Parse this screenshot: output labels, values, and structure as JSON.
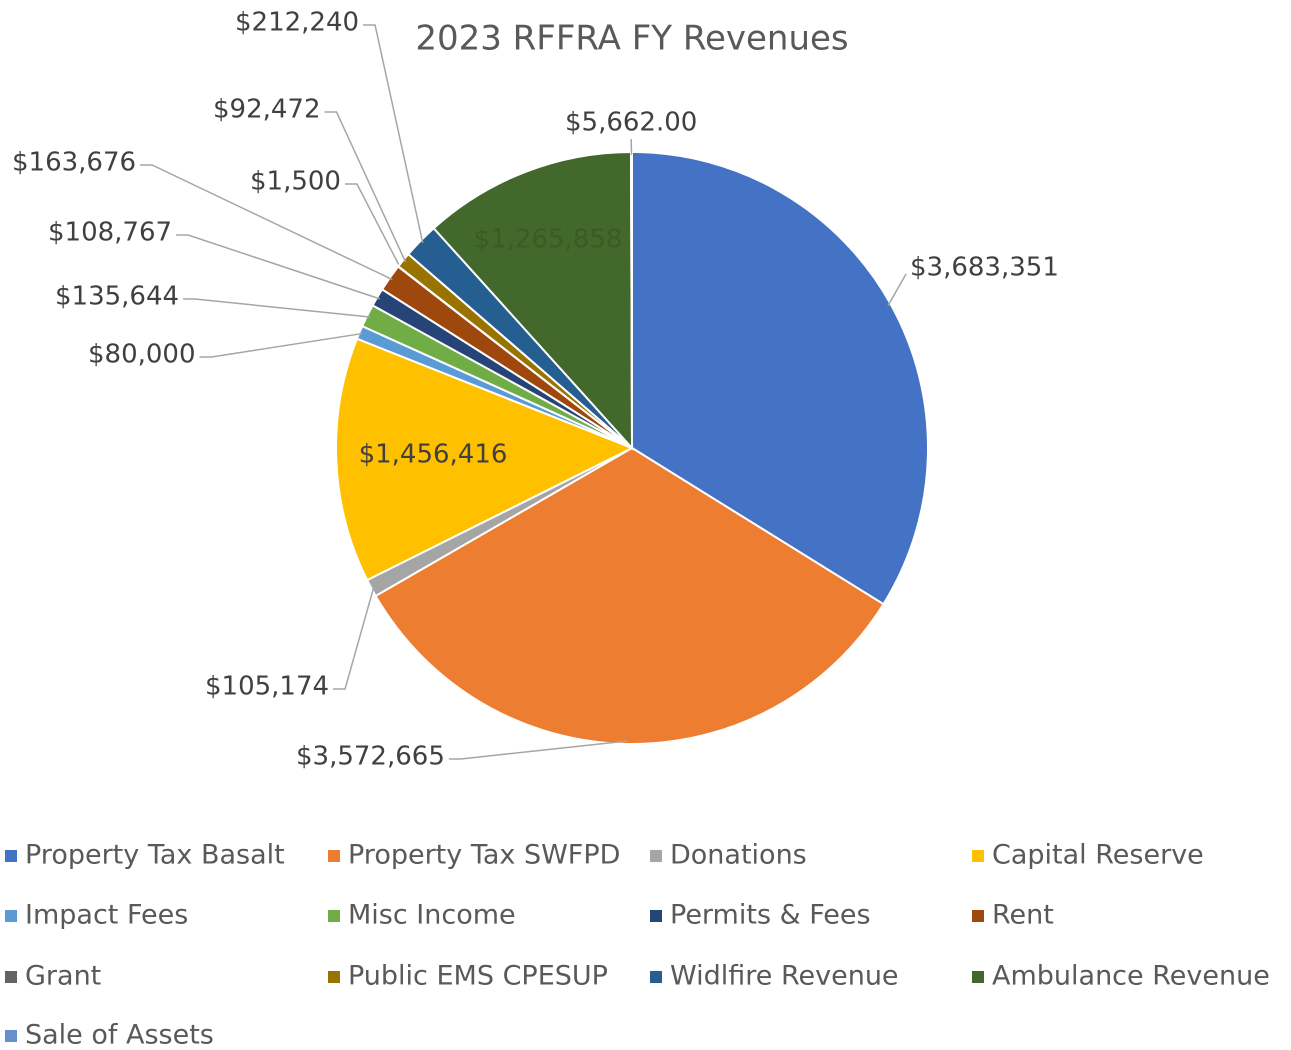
{
  "chart_data": {
    "type": "pie",
    "title": "2023 RFFRA FY Revenues",
    "categories": [
      "Property Tax Basalt",
      "Property Tax SWFPD",
      "Donations",
      "Capital Reserve",
      "Impact Fees",
      "Misc Income",
      "Permits & Fees",
      "Rent",
      "Grant",
      "Public EMS CPESUP",
      "Widlfire Revenue",
      "Ambulance Revenue",
      "Sale of Assets"
    ],
    "values": [
      3683351,
      3572665,
      105174,
      1456416,
      80000,
      135644,
      108767,
      163676,
      1500,
      92472,
      212240,
      1265858,
      5662
    ],
    "value_labels": [
      "$3,683,351",
      "$3,572,665",
      "$105,174",
      "$1,456,416",
      "$80,000",
      "$135,644",
      "$108,767",
      "$163,676",
      "$1,500",
      "$92,472",
      "$212,240",
      "$1,265,858",
      "$5,662.00"
    ],
    "colors": [
      "#4472c4",
      "#ed7d31",
      "#a5a5a5",
      "#ffc000",
      "#5b9bd5",
      "#70ad47",
      "#264478",
      "#9e480e",
      "#636363",
      "#997300",
      "#255e91",
      "#43682b",
      "#698ed0"
    ],
    "legend": "bottom"
  }
}
